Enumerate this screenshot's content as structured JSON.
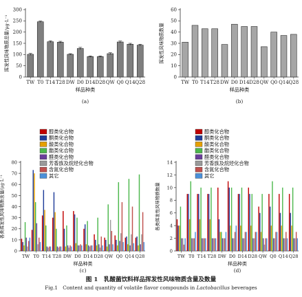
{
  "chart_data": [
    {
      "panel": "(a)",
      "type": "bar",
      "ylabel": "挥发性风味物质总量/μg·L⁻¹",
      "xlabel": "样品种类",
      "ylim": [
        0,
        300
      ],
      "yticks": [
        0,
        50,
        100,
        150,
        200,
        250,
        300
      ],
      "categories": [
        "TW",
        "T0",
        "T14",
        "T28",
        "DW",
        "D0",
        "D14",
        "D28",
        "QW",
        "Q0",
        "Q14",
        "Q28"
      ],
      "values": [
        101,
        246,
        157,
        155,
        101,
        127,
        91,
        91,
        104,
        156,
        146,
        142
      ],
      "errors": [
        4,
        3,
        4,
        4,
        3,
        5,
        3,
        3,
        4,
        4,
        4,
        4
      ],
      "color": "#7f7f7f"
    },
    {
      "panel": "(b)",
      "type": "bar",
      "ylabel": "挥发性风味物质数量",
      "xlabel": "样品种类",
      "ylim": [
        0,
        60
      ],
      "yticks": [
        0,
        10,
        20,
        30,
        40,
        50,
        60
      ],
      "categories": [
        "TW",
        "T0",
        "T14",
        "T28",
        "DW",
        "D0",
        "D14",
        "D28",
        "QW",
        "Q0",
        "Q14",
        "Q28"
      ],
      "values": [
        31,
        46,
        43,
        43,
        29,
        47,
        45,
        45,
        27,
        40,
        37,
        38
      ],
      "color": "#a6a6a6"
    },
    {
      "panel": "(c)",
      "type": "bar",
      "ylabel": "各类挥发性风味物质含量/μg·L⁻¹",
      "xlabel": "样品种类",
      "ylim": [
        0,
        80
      ],
      "yticks": [
        0,
        10,
        20,
        30,
        40,
        50,
        60,
        70,
        80
      ],
      "categories": [
        "TW",
        "T0",
        "T14",
        "T28",
        "DW",
        "D0",
        "D14",
        "D28",
        "QW",
        "Q0",
        "Q14",
        "Q28"
      ],
      "legend": [
        "醇类化合物",
        "酮类化合物",
        "酸类化合物",
        "酯类化合物",
        "醛类化合物",
        "芳香族及烷烃化合物",
        "含氮化合物",
        "其它"
      ],
      "colors": [
        "#c00000",
        "#1f3d99",
        "#e6a000",
        "#4cb84c",
        "#6a3d9a",
        "#9a9a9a",
        "#c0504d",
        "#4a90d9"
      ],
      "series": [
        {
          "name": "醇类化合物",
          "values": [
            11,
            19,
            32,
            30,
            36,
            36,
            20,
            15,
            12,
            14,
            12,
            12
          ]
        },
        {
          "name": "酮类化合物",
          "values": [
            8,
            73,
            55,
            53,
            20,
            33,
            24,
            10,
            10,
            10,
            13,
            13
          ]
        },
        {
          "name": "酸类化合物",
          "values": [
            5,
            70,
            37,
            35,
            4,
            7,
            6,
            5,
            4,
            5,
            6,
            5
          ]
        },
        {
          "name": "酯类化合物",
          "values": [
            26,
            44,
            23,
            20,
            23,
            30,
            27,
            30,
            42,
            62,
            65,
            69
          ]
        },
        {
          "name": "醛类化合物",
          "values": [
            12,
            25,
            4,
            4,
            5,
            5,
            5,
            6,
            6,
            9,
            5,
            6
          ]
        },
        {
          "name": "芳香族及烷烃化合物",
          "values": [
            4,
            6,
            3,
            3,
            3,
            5,
            4,
            3,
            28,
            16,
            15,
            15
          ]
        },
        {
          "name": "含氮化合物",
          "values": [
            9,
            12,
            4,
            4,
            5,
            6,
            5,
            13,
            18,
            44,
            40,
            35
          ]
        },
        {
          "name": "其它",
          "values": [
            12,
            8,
            4,
            4,
            4,
            5,
            5,
            5,
            6,
            8,
            7,
            8
          ]
        }
      ]
    },
    {
      "panel": "(d)",
      "type": "bar",
      "ylabel": "各类挥发性风味物质数量",
      "xlabel": "样品种类",
      "ylim": [
        0,
        14
      ],
      "yticks": [
        0,
        2,
        4,
        6,
        8,
        10,
        12,
        14
      ],
      "categories": [
        "TW",
        "T0",
        "T14",
        "T28",
        "DW",
        "D0",
        "D14",
        "D28",
        "QW",
        "Q0",
        "Q14",
        "Q28"
      ],
      "legend": [
        "醇类化合物",
        "酮类化合物",
        "酸类化合物",
        "酯类化合物",
        "醛类化合物",
        "芳香族及烷烃化合物",
        "含氮化合物",
        "其它"
      ],
      "colors": [
        "#c00000",
        "#1f3d99",
        "#e6a000",
        "#4cb84c",
        "#6a3d9a",
        "#9a9a9a",
        "#c0504d",
        "#4a90d9"
      ],
      "series": [
        {
          "name": "醇类化合物",
          "values": [
            5,
            9,
            9,
            9,
            10,
            11,
            9,
            10,
            7,
            9,
            9,
            9
          ]
        },
        {
          "name": "酮类化合物",
          "values": [
            4,
            9,
            9,
            9,
            5,
            10,
            9,
            9,
            6,
            7,
            6,
            6
          ]
        },
        {
          "name": "酸类化合物",
          "values": [
            4,
            5,
            5,
            5,
            3,
            4,
            4,
            4,
            3,
            4,
            4,
            4
          ]
        },
        {
          "name": "酯类化合物",
          "values": [
            7,
            11,
            10,
            10,
            3,
            10,
            10,
            9,
            9,
            11,
            10,
            10
          ]
        },
        {
          "name": "醛类化合物",
          "values": [
            2,
            2,
            2,
            2,
            2,
            2,
            2,
            2,
            2,
            2,
            2,
            2
          ]
        },
        {
          "name": "芳香族及烷烃化合物",
          "values": [
            2,
            2,
            2,
            2,
            2,
            2,
            2,
            2,
            1,
            2,
            2,
            2
          ]
        },
        {
          "name": "含氮化合物",
          "values": [
            1,
            2,
            2,
            2,
            2,
            3,
            3,
            3,
            2,
            3,
            3,
            3
          ]
        },
        {
          "name": "其它",
          "values": [
            2,
            3,
            2,
            2,
            3,
            4,
            3,
            3,
            2,
            3,
            2,
            2
          ]
        }
      ]
    }
  ],
  "captions": {
    "cn": "图 1　乳酸菌饮料样品挥发性风味物质含量及数量",
    "en_prefix": "Fig.1　Content and quantity of volatile flavor compounds in ",
    "en_italic": "Lactobacillus",
    "en_suffix": " beverages"
  }
}
